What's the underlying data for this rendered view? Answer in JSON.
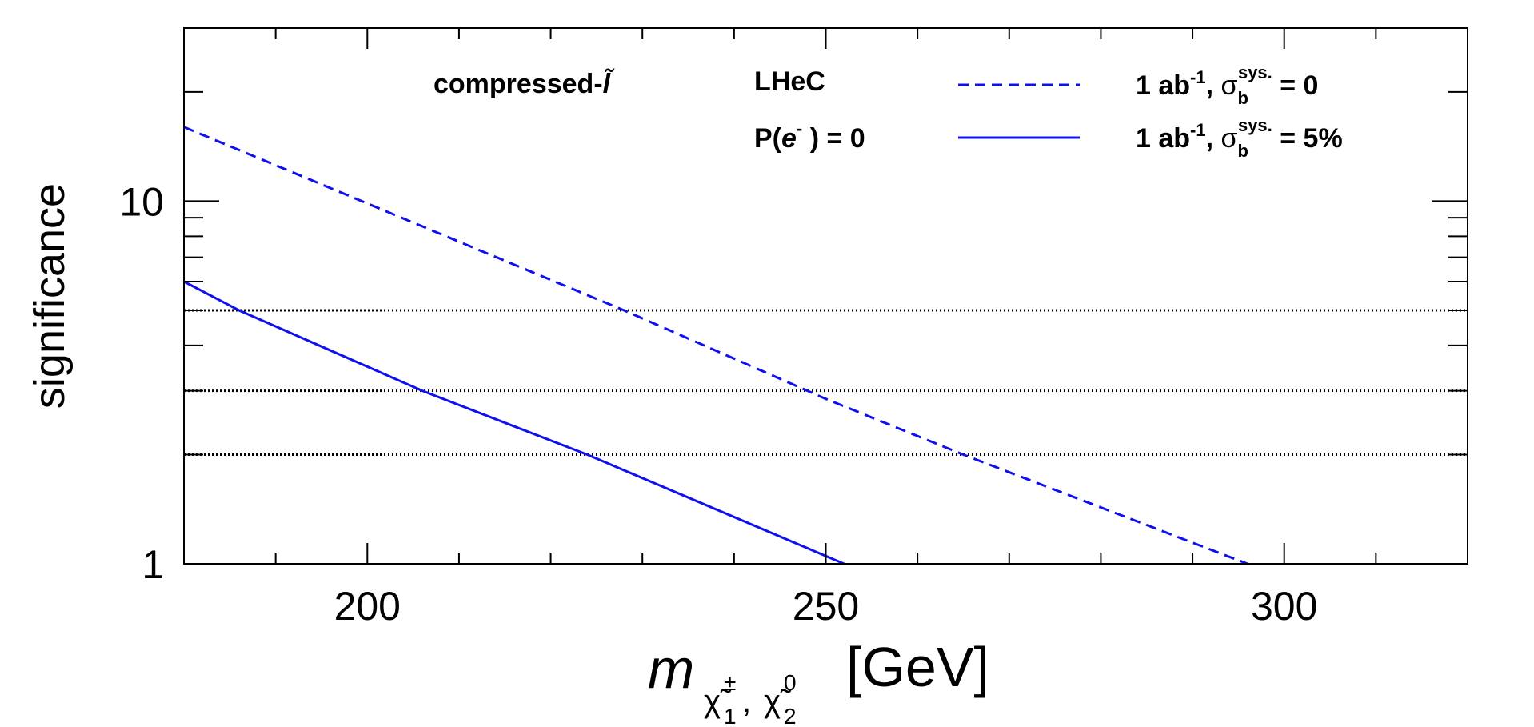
{
  "chart_data": {
    "type": "line",
    "title": "",
    "xlabel": {
      "symbol": "m",
      "sub_a": "χ̃",
      "sub_a_super": "±",
      "sub_a_index": "1",
      "separator": ",",
      "sub_b": "χ̃",
      "sub_b_super": "0",
      "sub_b_index": "2",
      "unit": "[GeV]"
    },
    "ylabel": "significance",
    "xlim": [
      180,
      320
    ],
    "ylim": [
      1,
      30
    ],
    "yscale": "log",
    "x_ticks": [
      200,
      250,
      300
    ],
    "x_tick_labels": [
      "200",
      "250",
      "300"
    ],
    "y_ticks": [
      1,
      10
    ],
    "y_tick_labels": [
      "1",
      "10"
    ],
    "reference_lines": [
      {
        "y": 2,
        "style": "dotted"
      },
      {
        "y": 3,
        "style": "dotted"
      },
      {
        "y": 5,
        "style": "dotted"
      }
    ],
    "series": [
      {
        "name": "1 ab-1, sigma_b sys. = 0",
        "style": "dashed",
        "color": "#1010ee",
        "x": [
          180,
          228,
          250,
          265,
          296
        ],
        "y": [
          16,
          5,
          2.85,
          2,
          1
        ]
      },
      {
        "name": "1 ab-1, sigma_b sys. = 5%",
        "style": "solid",
        "color": "#1010ee",
        "x": [
          180,
          186,
          206,
          224,
          252
        ],
        "y": [
          6,
          5,
          3,
          2,
          1
        ]
      }
    ],
    "annotations": {
      "process": {
        "text": "compressed-",
        "symbol": "l̃"
      },
      "collider": "LHeC",
      "polarization": {
        "prefix": "P(",
        "particle": "e",
        "charge": "-",
        "suffix": " ) = 0"
      }
    },
    "legend": [
      {
        "lumi": "1 ab",
        "lumi_exp": "-1",
        "sigma": "σ",
        "sigma_sub": "b",
        "sigma_sup": "sys.",
        "value": " = 0"
      },
      {
        "lumi": "1 ab",
        "lumi_exp": "-1",
        "sigma": "σ",
        "sigma_sub": "b",
        "sigma_sup": "sys.",
        "value": " = 5%"
      }
    ],
    "legend_position": "top-right"
  }
}
